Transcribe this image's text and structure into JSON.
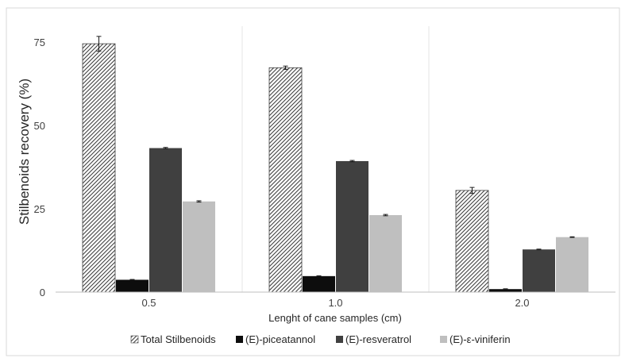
{
  "chart_data": {
    "type": "bar",
    "title": "",
    "xlabel": "Lenght of cane samples (cm)",
    "ylabel": "Stilbenoids recovery (%)",
    "categories": [
      "0.5",
      "1.0",
      "2.0"
    ],
    "ylim": [
      0,
      75
    ],
    "yticks": [
      "0",
      "25",
      "50",
      "75"
    ],
    "grid": "vertical category separators",
    "legend_position": "bottom",
    "series": [
      {
        "name": "Total Stilbenoids",
        "values": [
          74.5,
          67.3,
          30.5
        ],
        "errors": [
          2.2,
          0.5,
          0.9
        ],
        "color": "#ffffff",
        "pattern": "diagonal-hatch"
      },
      {
        "name": "(E)-piceatannol",
        "values": [
          3.7,
          4.8,
          0.9
        ],
        "errors": [
          0.1,
          0.1,
          0.1
        ],
        "color": "#0d0d0d"
      },
      {
        "name": "(E)-resveratrol",
        "values": [
          43.2,
          39.3,
          12.8
        ],
        "errors": [
          0.2,
          0.2,
          0.1
        ],
        "color": "#404040"
      },
      {
        "name": "(E)-ε-viniferin",
        "values": [
          27.2,
          23.1,
          16.5
        ],
        "errors": [
          0.2,
          0.2,
          0.1
        ],
        "color": "#bfbfbf"
      }
    ]
  }
}
